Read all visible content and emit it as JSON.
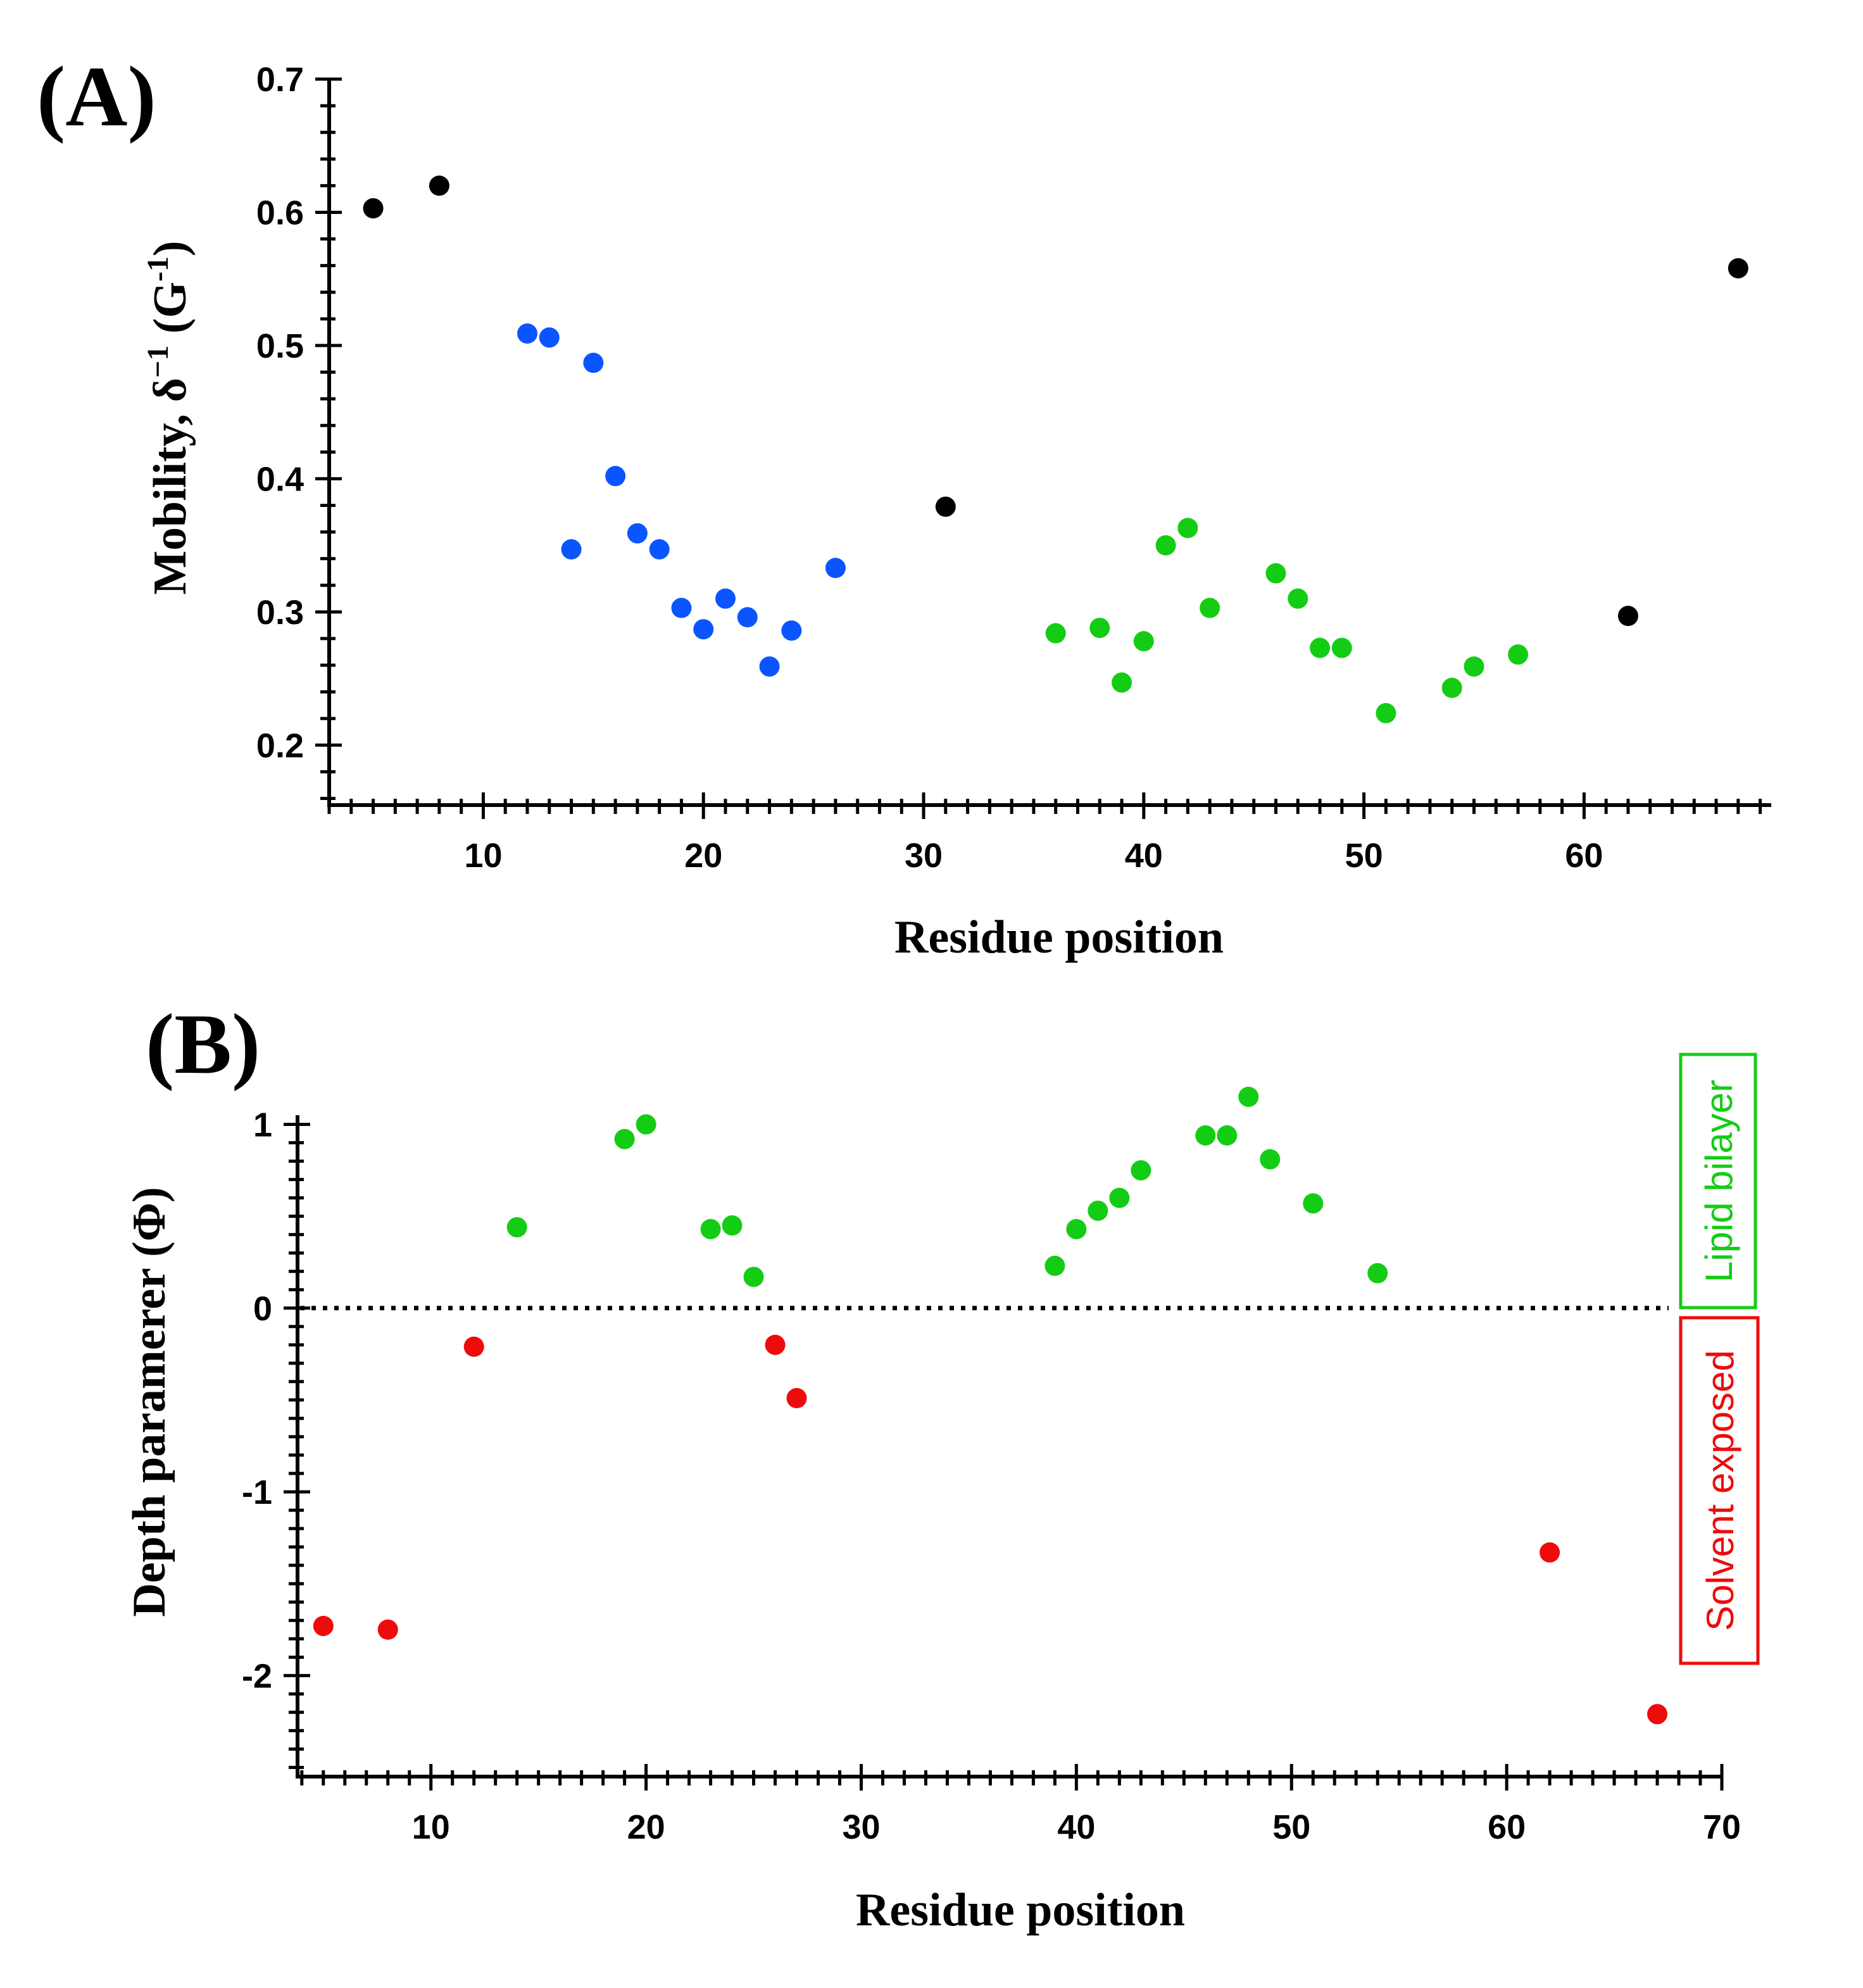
{
  "colors": {
    "black": "#000000",
    "blue": "#0a55ff",
    "green": "#15cc15",
    "red": "#ee0b0b"
  },
  "chart_data": [
    {
      "type": "scatter",
      "panel_label": "(A)",
      "xlabel": "Residue position",
      "ylabel_main": "Mobility, δ",
      "ylabel_sup": "−1",
      "ylabel_unit_open": " (G",
      "ylabel_unit_sup": "-1",
      "ylabel_unit_close": ")",
      "xlim": [
        3,
        68.5
      ],
      "ylim": [
        0.155,
        0.7
      ],
      "x_ticks": [
        10,
        20,
        30,
        40,
        50,
        60
      ],
      "x_tick_labels": [
        "10",
        "20",
        "30",
        "40",
        "50",
        "60"
      ],
      "y_ticks": [
        0.2,
        0.3,
        0.4,
        0.5,
        0.6,
        0.7
      ],
      "y_tick_labels": [
        "0.2",
        "0.3",
        "0.4",
        "0.5",
        "0.6",
        "0.7"
      ],
      "series": [
        {
          "name": "black",
          "color": "#000000",
          "points": [
            [
              5,
              0.603
            ],
            [
              8,
              0.62
            ],
            [
              31,
              0.379
            ],
            [
              62,
              0.297
            ],
            [
              67,
              0.558
            ]
          ]
        },
        {
          "name": "blue",
          "color": "#0a55ff",
          "points": [
            [
              12,
              0.509
            ],
            [
              13,
              0.506
            ],
            [
              14,
              0.347
            ],
            [
              15,
              0.487
            ],
            [
              16,
              0.402
            ],
            [
              17,
              0.359
            ],
            [
              18,
              0.347
            ],
            [
              19,
              0.303
            ],
            [
              20,
              0.287
            ],
            [
              21,
              0.31
            ],
            [
              22,
              0.296
            ],
            [
              23,
              0.259
            ],
            [
              24,
              0.286
            ],
            [
              26,
              0.333
            ]
          ]
        },
        {
          "name": "green",
          "color": "#15cc15",
          "points": [
            [
              36,
              0.284
            ],
            [
              38,
              0.288
            ],
            [
              39,
              0.247
            ],
            [
              40,
              0.278
            ],
            [
              41,
              0.35
            ],
            [
              42,
              0.363
            ],
            [
              43,
              0.303
            ],
            [
              46,
              0.329
            ],
            [
              47,
              0.31
            ],
            [
              48,
              0.273
            ],
            [
              49,
              0.273
            ],
            [
              51,
              0.224
            ],
            [
              54,
              0.243
            ],
            [
              55,
              0.259
            ],
            [
              57,
              0.268
            ]
          ]
        }
      ]
    },
    {
      "type": "scatter",
      "panel_label": "(B)",
      "xlabel": "Residue position",
      "ylabel": "Depth paramerer (Φ)",
      "xlim": [
        3.8,
        70
      ],
      "ylim": [
        -2.55,
        1.05
      ],
      "x_ticks": [
        10,
        20,
        30,
        40,
        50,
        60,
        70
      ],
      "x_tick_labels": [
        "10",
        "20",
        "30",
        "40",
        "50",
        "60",
        "70"
      ],
      "y_ticks": [
        -2,
        -1,
        0,
        1
      ],
      "y_tick_labels": [
        "-2",
        "-1",
        "0",
        "1"
      ],
      "reference_line": {
        "y": 0,
        "style": "dotted"
      },
      "region_labels": {
        "above": "Lipid bilayer",
        "below": "Solvent exposed"
      },
      "series": [
        {
          "name": "green",
          "color": "#15cc15",
          "points": [
            [
              14,
              0.44
            ],
            [
              19,
              0.92
            ],
            [
              20,
              1.0
            ],
            [
              23,
              0.43
            ],
            [
              24,
              0.45
            ],
            [
              25,
              0.17
            ],
            [
              39,
              0.23
            ],
            [
              40,
              0.43
            ],
            [
              41,
              0.53
            ],
            [
              42,
              0.6
            ],
            [
              43,
              0.75
            ],
            [
              46,
              0.94
            ],
            [
              47,
              0.94
            ],
            [
              48,
              1.15
            ],
            [
              49,
              0.81
            ],
            [
              51,
              0.57
            ],
            [
              54,
              0.19
            ]
          ]
        },
        {
          "name": "red",
          "color": "#ee0b0b",
          "points": [
            [
              5,
              -1.73
            ],
            [
              8,
              -1.75
            ],
            [
              12,
              -0.21
            ],
            [
              26,
              -0.2
            ],
            [
              27,
              -0.49
            ],
            [
              62,
              -1.33
            ],
            [
              67,
              -2.21
            ]
          ]
        }
      ]
    }
  ]
}
